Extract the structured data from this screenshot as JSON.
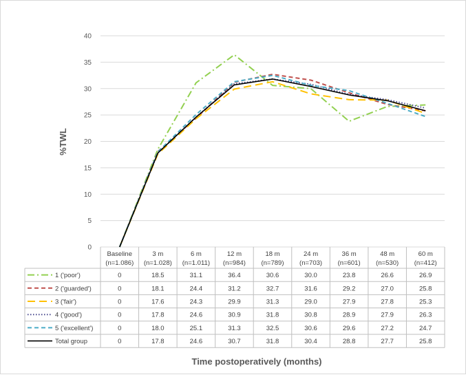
{
  "chart_data": {
    "type": "line",
    "title": "",
    "xlabel": "Time postoperatively (months)",
    "ylabel": "%TWL",
    "ylim": [
      0,
      40
    ],
    "yticks": [
      0,
      5,
      10,
      15,
      20,
      25,
      30,
      35,
      40
    ],
    "grid": "horizontal",
    "legend": "data table below chart",
    "categories": [
      [
        "Baseline",
        "(n=1.086)"
      ],
      [
        "3 m",
        "(n=1.028)"
      ],
      [
        "6 m",
        "(n=1.011)"
      ],
      [
        "12 m",
        "(n=984)"
      ],
      [
        "18 m",
        "(n=789)"
      ],
      [
        "24 m",
        "(n=703)"
      ],
      [
        "36 m",
        "(n=601)"
      ],
      [
        "48 m",
        "(n=530)"
      ],
      [
        "60 m",
        "(n=412)"
      ]
    ],
    "series": [
      {
        "name": "1 ('poor')",
        "color": "#92d050",
        "style": "dashdot",
        "values": [
          0,
          18.5,
          31.1,
          36.4,
          30.6,
          30.0,
          23.8,
          26.6,
          26.9
        ]
      },
      {
        "name": "2 ('guarded')",
        "color": "#c0504d",
        "style": "dash",
        "values": [
          0,
          18.1,
          24.4,
          31.2,
          32.7,
          31.6,
          29.2,
          27.0,
          25.8
        ]
      },
      {
        "name": "3 ('fair')",
        "color": "#ffc000",
        "style": "longdash",
        "values": [
          0,
          17.6,
          24.3,
          29.9,
          31.3,
          29.0,
          27.9,
          27.8,
          25.3
        ]
      },
      {
        "name": "4 ('good')",
        "color": "#4b4b8f",
        "style": "dot",
        "values": [
          0,
          17.8,
          24.6,
          30.9,
          31.8,
          30.8,
          28.9,
          27.9,
          26.3
        ]
      },
      {
        "name": "5 ('excellent')",
        "color": "#4bacc6",
        "style": "dash",
        "values": [
          0,
          18.0,
          25.1,
          31.3,
          32.5,
          30.6,
          29.6,
          27.2,
          24.7
        ]
      },
      {
        "name": "Total group",
        "color": "#000000",
        "style": "solid",
        "values": [
          0,
          17.8,
          24.6,
          30.7,
          31.8,
          30.4,
          28.8,
          27.7,
          25.8
        ]
      }
    ],
    "table_values": [
      [
        "0",
        "18.5",
        "31.1",
        "36.4",
        "30.6",
        "30.0",
        "23.8",
        "26.6",
        "26.9"
      ],
      [
        "0",
        "18.1",
        "24.4",
        "31.2",
        "32.7",
        "31.6",
        "29.2",
        "27.0",
        "25.8"
      ],
      [
        "0",
        "17.6",
        "24.3",
        "29.9",
        "31.3",
        "29.0",
        "27.9",
        "27.8",
        "25.3"
      ],
      [
        "0",
        "17.8",
        "24.6",
        "30.9",
        "31.8",
        "30.8",
        "28.9",
        "27.9",
        "26.3"
      ],
      [
        "0",
        "18.0",
        "25.1",
        "31.3",
        "32.5",
        "30.6",
        "29.6",
        "27.2",
        "24.7"
      ],
      [
        "0",
        "17.8",
        "24.6",
        "30.7",
        "31.8",
        "30.4",
        "28.8",
        "27.7",
        "25.8"
      ]
    ]
  }
}
